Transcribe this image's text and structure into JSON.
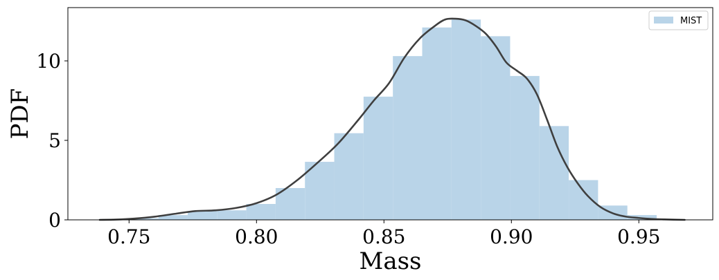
{
  "chart_data": {
    "type": "bar",
    "title": "",
    "xlabel": "Mass",
    "ylabel": "PDF",
    "xlim": [
      0.726,
      0.979
    ],
    "ylim": [
      0,
      13.35
    ],
    "xticks": [
      0.75,
      0.8,
      0.85,
      0.9,
      0.95
    ],
    "xtick_labels": [
      "0.75",
      "0.80",
      "0.85",
      "0.90",
      "0.95"
    ],
    "yticks": [
      0,
      5,
      10
    ],
    "ytick_labels": [
      "0",
      "5",
      "10"
    ],
    "grid": false,
    "legend_position": "top-right",
    "colors": {
      "histogram": "#b9d4e8",
      "kde": "#3f3f3f"
    },
    "series": [
      {
        "name": "MIST",
        "kind": "histogram",
        "bin_edges": [
          0.7385,
          0.75,
          0.7615,
          0.773,
          0.7845,
          0.796,
          0.8075,
          0.819,
          0.8305,
          0.842,
          0.8535,
          0.865,
          0.8765,
          0.888,
          0.8995,
          0.911,
          0.9225,
          0.934,
          0.9455,
          0.957
        ],
        "values": [
          0.05,
          0.1,
          0.3,
          0.55,
          0.6,
          1.0,
          2.0,
          3.65,
          5.45,
          7.75,
          10.3,
          12.1,
          12.6,
          11.55,
          9.05,
          5.9,
          2.5,
          0.9,
          0.3
        ]
      },
      {
        "kind": "kde",
        "x": [
          0.7385,
          0.745,
          0.752,
          0.76,
          0.768,
          0.776,
          0.784,
          0.792,
          0.8,
          0.808,
          0.816,
          0.824,
          0.832,
          0.84,
          0.846,
          0.852,
          0.858,
          0.864,
          0.87,
          0.874,
          0.878,
          0.882,
          0.886,
          0.89,
          0.894,
          0.898,
          0.902,
          0.906,
          0.91,
          0.914,
          0.918,
          0.922,
          0.926,
          0.93,
          0.935,
          0.94,
          0.945,
          0.95,
          0.955,
          0.96,
          0.968
        ],
        "y": [
          0.0,
          0.02,
          0.08,
          0.2,
          0.38,
          0.55,
          0.6,
          0.75,
          1.05,
          1.6,
          2.5,
          3.6,
          4.8,
          6.3,
          7.5,
          8.6,
          10.2,
          11.4,
          12.2,
          12.6,
          12.65,
          12.55,
          12.2,
          11.7,
          10.9,
          9.9,
          9.4,
          8.9,
          7.9,
          6.3,
          4.6,
          3.3,
          2.3,
          1.5,
          0.8,
          0.4,
          0.2,
          0.12,
          0.06,
          0.03,
          0.0
        ]
      }
    ]
  }
}
